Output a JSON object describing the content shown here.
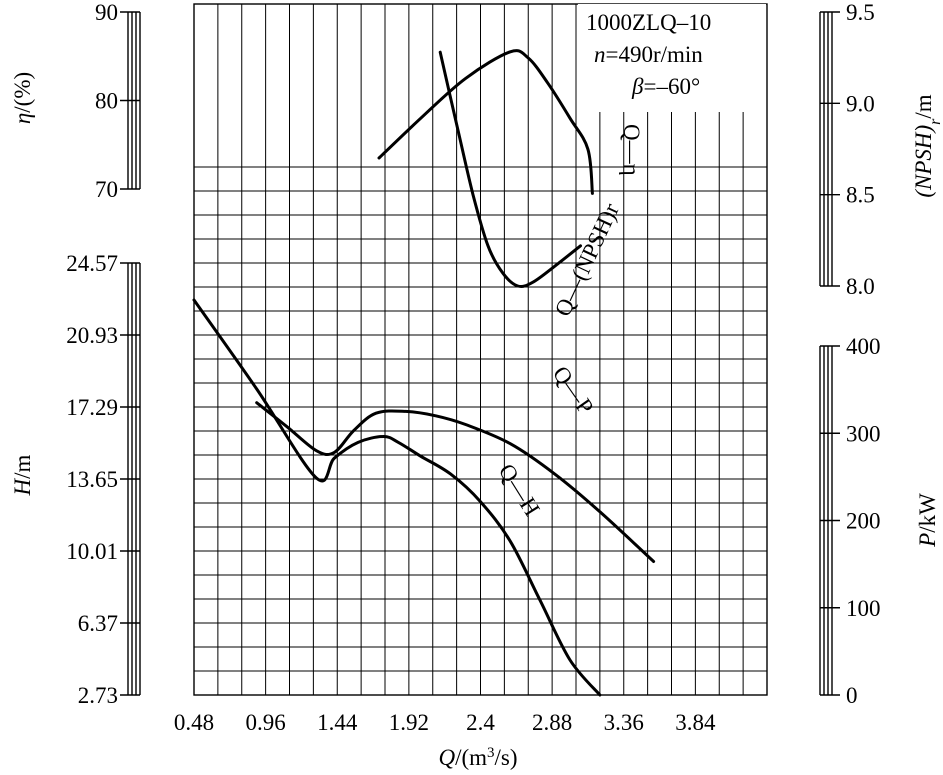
{
  "chart_data": {
    "type": "line",
    "title_block": {
      "model": "1000ZLQ–10",
      "speed_var": "n",
      "speed_value": "=490r/min",
      "angle_var": "β",
      "angle_value": "=–60°"
    },
    "x_axis": {
      "var": "Q",
      "unit": "/(m",
      "unit_sup": "3",
      "unit_end": "/s)",
      "range": [
        0.48,
        4.32
      ],
      "tick_labels": [
        "0.48",
        "0.96",
        "1.44",
        "1.92",
        "2.4",
        "2.88",
        "3.36",
        "3.84"
      ],
      "tick_values": [
        0.48,
        0.96,
        1.44,
        1.92,
        2.4,
        2.88,
        3.36,
        3.84
      ]
    },
    "axes": {
      "eta": {
        "var": "η",
        "unit": "/(%)",
        "range": [
          70,
          90
        ],
        "tick_labels": [
          "70",
          "80",
          "90"
        ],
        "tick_values": [
          70,
          80,
          90
        ]
      },
      "H": {
        "var": "H",
        "unit": "/m",
        "range": [
          2.73,
          24.57
        ],
        "tick_labels": [
          "2.73",
          "6.37",
          "10.01",
          "13.65",
          "17.29",
          "20.93",
          "24.57"
        ],
        "tick_values": [
          2.73,
          6.37,
          10.01,
          13.65,
          17.29,
          20.93,
          24.57
        ]
      },
      "NPSH": {
        "var": "(NPSH)",
        "sub": "r",
        "unit": "/m",
        "range": [
          8.0,
          9.5
        ],
        "tick_labels": [
          "8.0",
          "8.5",
          "9.0",
          "9.5"
        ],
        "tick_values": [
          8.0,
          8.5,
          9.0,
          9.5
        ]
      },
      "P": {
        "var": "P",
        "unit": "/kW",
        "range": [
          0,
          400
        ],
        "tick_labels": [
          "0",
          "100",
          "200",
          "300",
          "400"
        ],
        "tick_values": [
          0,
          100,
          200,
          300,
          400
        ]
      }
    },
    "series": [
      {
        "label": "Q—H",
        "axis": "H",
        "x": [
          0.48,
          0.9,
          1.3,
          1.42,
          1.58,
          1.75,
          1.85,
          2.0,
          2.2,
          2.4,
          2.6,
          2.8,
          3.0,
          3.2
        ],
        "y": [
          22.7,
          18.2,
          13.7,
          14.7,
          15.5,
          15.8,
          15.5,
          14.8,
          13.9,
          12.5,
          10.5,
          7.5,
          4.5,
          2.73
        ]
      },
      {
        "label": "Q—P",
        "axis": "P",
        "x": [
          0.9,
          1.1,
          1.3,
          1.42,
          1.55,
          1.7,
          1.9,
          2.1,
          2.3,
          2.6,
          2.9,
          3.2,
          3.56
        ],
        "y": [
          335,
          308,
          280,
          278,
          303,
          323,
          325,
          320,
          310,
          288,
          253,
          210,
          153
        ]
      },
      {
        "label": "Q—(NPSH)r",
        "axis": "NPSH",
        "x": [
          2.13,
          2.25,
          2.35,
          2.45,
          2.55,
          2.65,
          2.75,
          2.9,
          3.07
        ],
        "y": [
          9.28,
          8.85,
          8.5,
          8.22,
          8.07,
          8.0,
          8.02,
          8.11,
          8.22
        ]
      },
      {
        "label": "Q—η",
        "axis": "eta",
        "x": [
          1.72,
          2.0,
          2.3,
          2.6,
          2.72,
          2.85,
          3.0,
          3.12,
          3.15
        ],
        "y": [
          73.5,
          78,
          82.5,
          85.5,
          84.8,
          82,
          78,
          74.5,
          69.5
        ]
      }
    ]
  }
}
